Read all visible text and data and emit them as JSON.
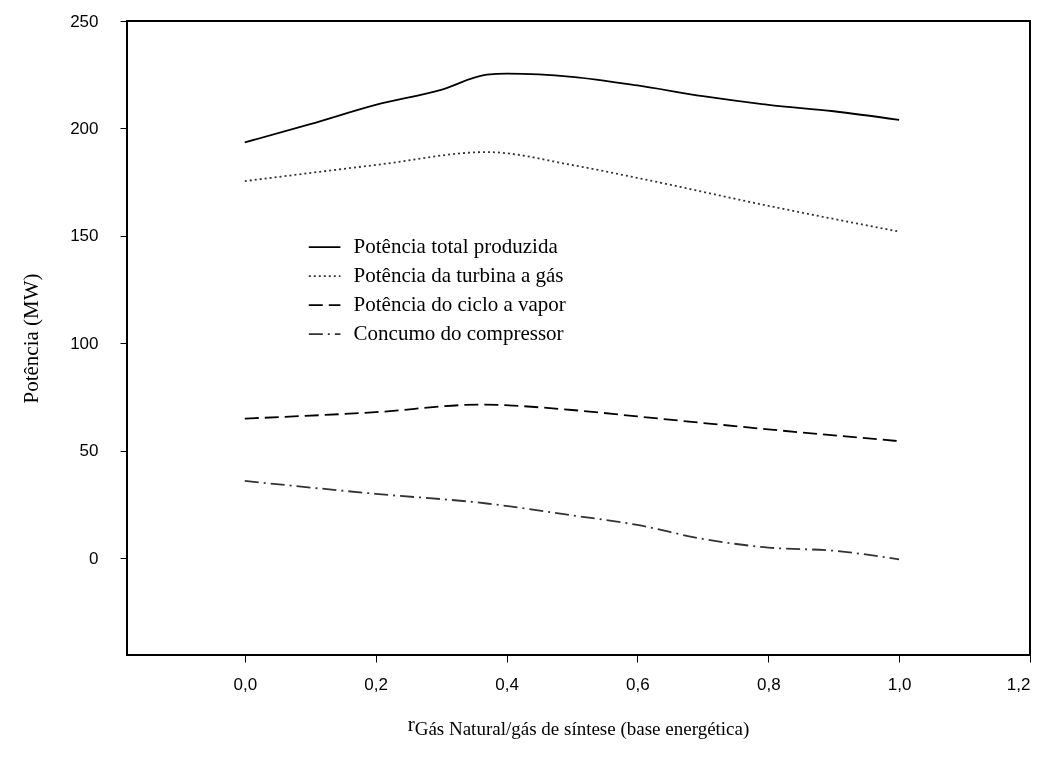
{
  "chart_data": {
    "type": "line",
    "xlabel": "r$_{Gás Natural/gás de síntese (base energética)}$",
    "ylabel": "Potência (MW)",
    "xlim": [
      -0.18,
      1.2
    ],
    "xticks": [
      {
        "value": 0,
        "label": "0,0"
      },
      {
        "value": 0.2,
        "label": "0,2"
      },
      {
        "value": 0.4,
        "label": "0,4"
      },
      {
        "value": 0.6,
        "label": "0,6"
      },
      {
        "value": 0.8,
        "label": "0,8"
      },
      {
        "value": 1.0,
        "label": "1,0"
      },
      {
        "value": 1.2,
        "label": "1,2"
      }
    ],
    "ylim": [
      -45,
      250
    ],
    "yticks": [
      0,
      50,
      100,
      150,
      200,
      250
    ],
    "grid": false,
    "legend": "left",
    "series": [
      {
        "name": "Potência total produzida",
        "color": "#000000",
        "line_style": "solid",
        "x": [
          0,
          0.1,
          0.2,
          0.3,
          0.37,
          0.4,
          0.5,
          0.6,
          0.7,
          0.8,
          0.9,
          1.0
        ],
        "values": [
          193.5,
          202,
          211,
          218,
          225,
          225.5,
          224,
          220,
          215,
          211,
          208,
          204
        ]
      },
      {
        "name": "Potência da turbina a gás",
        "color": "#333333",
        "line_style": "dotted",
        "x": [
          0,
          0.2,
          0.37,
          0.5,
          0.6,
          0.8,
          1.0
        ],
        "values": [
          175.5,
          183,
          189,
          183,
          177,
          164,
          152
        ]
      },
      {
        "name": "Potência do ciclo a vapor",
        "color": "#000000",
        "line_style": "dashed",
        "x": [
          0,
          0.2,
          0.36,
          0.5,
          0.6,
          0.8,
          1.0
        ],
        "values": [
          65,
          68,
          71.5,
          69,
          66,
          60,
          54.5
        ]
      },
      {
        "name": "Concumo do compressor",
        "color": "#333333",
        "line_style": "dashdot",
        "x": [
          0,
          0.2,
          0.37,
          0.5,
          0.6,
          0.7,
          0.8,
          0.9,
          1.0
        ],
        "values": [
          36,
          30,
          25.5,
          20,
          15.5,
          9,
          5,
          3.5,
          -0.5
        ]
      }
    ]
  }
}
